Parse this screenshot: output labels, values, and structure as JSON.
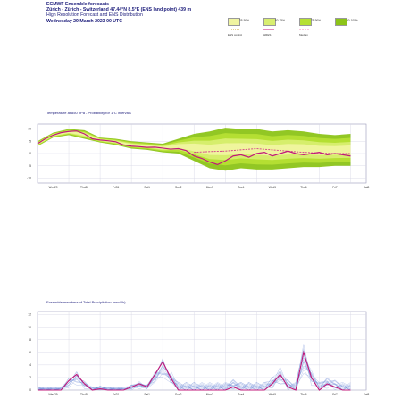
{
  "header": {
    "line1": "ECMWF Ensemble forecasts",
    "line2": "Zürich - Zürich - Switzerland 47.44°N 8.5°E (ENS land point) 439 m",
    "line3": "High Resolution Forecast and ENS Distribution",
    "line4": "Wednesday 29 March 2023 00 UTC"
  },
  "legend": {
    "items": [
      {
        "label": "25-50%",
        "color": "#f0f4a0"
      },
      {
        "label": "50-75%",
        "color": "#d8ee70"
      },
      {
        "label": "75-90%",
        "color": "#b6e034"
      },
      {
        "label": "90-100%",
        "color": "#8cc418"
      }
    ],
    "line_items": [
      {
        "label": "ENS control",
        "color": "#c8a030",
        "style": "dotted"
      },
      {
        "label": "HRES",
        "color": "#c0187a",
        "style": "solid"
      },
      {
        "label": "Median",
        "color": "#f28cb8",
        "style": "dashed"
      }
    ]
  },
  "panels": {
    "temp_title": "Temperature at 850 hPa - Probability for 1°C intervals",
    "precip_title": "Ensemble members of Total Precipitation (mm/6h)"
  },
  "chart_data": [
    {
      "type": "area",
      "title": "Temperature at 850 hPa - Probability for 1°C intervals",
      "ylabel": "",
      "ylim": [
        -12,
        12
      ],
      "yticks": [
        10,
        5,
        0,
        -5,
        -10
      ],
      "x_labels": [
        "Wed29",
        "Thu30",
        "Fri31",
        "Sat1",
        "Sun2",
        "Mon3",
        "Tue4",
        "Wed5",
        "Thu6",
        "Fri7",
        "Sat8"
      ],
      "x_range": [
        0,
        10.5
      ],
      "grid": true,
      "hres": {
        "x": [
          0,
          0.25,
          0.5,
          0.75,
          1,
          1.25,
          1.5,
          1.75,
          2,
          2.25,
          2.5,
          2.75,
          3,
          3.25,
          3.5,
          3.75,
          4,
          4.25,
          4.5,
          4.75,
          5,
          5.25,
          5.5,
          5.75,
          6,
          6.25,
          6.5,
          6.75,
          7,
          7.25,
          7.5,
          7.75,
          8,
          8.25,
          8.5,
          8.75,
          9,
          9.25,
          9.5,
          9.75,
          10
        ],
        "values": [
          4,
          6,
          7.5,
          8.5,
          9,
          9.2,
          8,
          6,
          5.5,
          5.2,
          4.8,
          3.5,
          3,
          2.8,
          2.5,
          2.6,
          2.2,
          1.8,
          2,
          1.2,
          -1,
          -2,
          -3.5,
          -4.5,
          -3,
          -1,
          -0.5,
          -1.5,
          0,
          0.5,
          -1,
          0,
          1,
          0,
          -0.5,
          0,
          0.5,
          -0.5,
          0,
          -0.5,
          -1
        ]
      },
      "median": {
        "x": [
          5,
          5.5,
          6,
          6.5,
          7,
          7.5,
          8,
          8.5,
          9,
          9.5,
          10
        ],
        "values": [
          0.5,
          0.8,
          1,
          1.5,
          2,
          1.5,
          1,
          0.5,
          0.2,
          0,
          0
        ]
      },
      "band": {
        "x": [
          0,
          0.5,
          1,
          1.5,
          2,
          2.5,
          3,
          3.5,
          4,
          4.5,
          5,
          5.5,
          6,
          6.5,
          7,
          7.5,
          8,
          8.5,
          9,
          9.5,
          10
        ],
        "low": [
          3,
          6.5,
          7.5,
          6,
          4.5,
          3.5,
          2,
          1.5,
          0.5,
          0,
          -3,
          -6,
          -7,
          -6,
          -6.5,
          -6.5,
          -6,
          -5.5,
          -5.5,
          -5,
          -5
        ],
        "high": [
          5,
          8.5,
          10,
          9.5,
          6.5,
          6,
          5,
          4.5,
          4,
          6,
          8,
          9,
          10.5,
          10,
          10,
          9,
          9.5,
          9,
          8,
          7.5,
          8
        ]
      }
    },
    {
      "type": "line",
      "title": "Ensemble members of Total Precipitation (mm/6h)",
      "ylabel": "",
      "ylim": [
        0,
        12.5
      ],
      "yticks": [
        12,
        10,
        8,
        6,
        4,
        2,
        0
      ],
      "x_labels": [
        "Wed29",
        "Thu30",
        "Fri31",
        "Sat1",
        "Sun2",
        "Mon3",
        "Tue4",
        "Wed5",
        "Thu6",
        "Fri7",
        "Sat8"
      ],
      "x_range": [
        0,
        10.5
      ],
      "grid": true,
      "hres": {
        "x": [
          0,
          0.25,
          0.5,
          0.75,
          1,
          1.25,
          1.5,
          1.75,
          2,
          2.25,
          2.5,
          2.75,
          3,
          3.25,
          3.5,
          3.75,
          4,
          4.25,
          4.5,
          4.75,
          5,
          5.25,
          5.5,
          5.75,
          6,
          6.25,
          6.5,
          6.75,
          7,
          7.25,
          7.5,
          7.75,
          8,
          8.25,
          8.5,
          8.75,
          9,
          9.25,
          9.5,
          9.75,
          10
        ],
        "values": [
          0,
          0,
          0,
          0,
          1.5,
          2.5,
          1,
          0,
          0.2,
          0,
          0,
          0,
          0.5,
          1,
          0.5,
          2.5,
          4.5,
          2,
          0,
          0,
          0,
          0,
          0,
          0,
          0,
          0.5,
          0,
          0,
          0,
          0,
          1,
          2.5,
          0.5,
          0,
          6,
          2,
          0,
          1,
          0.5,
          0,
          0
        ]
      }
    }
  ]
}
